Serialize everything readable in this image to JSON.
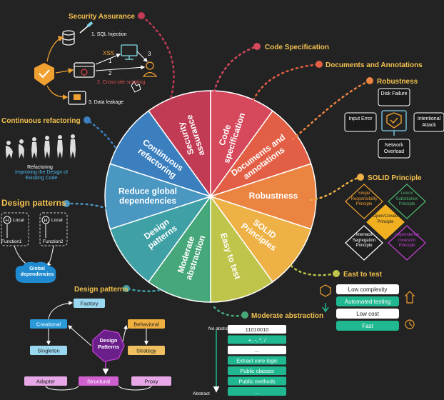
{
  "wheel": {
    "sectors": [
      {
        "label": "Security assurance",
        "color": "#c23b54"
      },
      {
        "label": "Code specification",
        "color": "#d6485c"
      },
      {
        "label": "Documents and annotations",
        "color": "#e25f45"
      },
      {
        "label": "Robustness",
        "color": "#ea8440"
      },
      {
        "label": "SOLID Principles",
        "color": "#eeb145"
      },
      {
        "label": "Easy to test",
        "color": "#bfc54a"
      },
      {
        "label": "Moderate abstraction",
        "color": "#46a77a"
      },
      {
        "label": "Design patterns",
        "color": "#3fa0a6"
      },
      {
        "label": "Reduce global dependencies",
        "color": "#4a97c2"
      },
      {
        "label": "Continuous refactoring",
        "color": "#3b7fbf"
      }
    ]
  },
  "headings": {
    "security": "Security Assurance",
    "code_spec": "Code Specification",
    "documents": "Documents and Annotations",
    "robustness": "Robustness",
    "solid": "SOLID Principle",
    "easy_test": "East to test",
    "moderate": "Moderate abstraction",
    "design_patterns_left": "Design patterns",
    "design_patterns_bottom": "Design patterns",
    "refactoring": "Continuous refactoring"
  },
  "security": {
    "sql": "1. SQL Injection",
    "xss": "XSS",
    "xss_caption": "2. Cross-site scripting",
    "leak": "3. Data leakage",
    "n1": "1",
    "n2": "2",
    "n3": "3"
  },
  "robustness": {
    "disk": "Disk Failure",
    "input": "Input Error",
    "intentional": "Intentional Attack",
    "network": "Network Overload"
  },
  "solid": {
    "single": "Single Responsibility Principle",
    "liskov": "Liskov Substitution Principle",
    "open_closed": "Open/Closed Principle",
    "interface": "Interface Segregation Principle",
    "dependency": "Dependency Inversion Principle"
  },
  "easy_test": {
    "items": [
      "Low complexity",
      "Automated testing",
      "Low cost",
      "Fast"
    ]
  },
  "abstraction": {
    "top": "No abstraction",
    "bottom": "Abstract",
    "rows": [
      "11010010",
      "+, -, *, /",
      "...",
      "Extract core logic",
      "Public classes",
      "Public methods",
      "..."
    ]
  },
  "refactoring": {
    "caption": "Refactoring",
    "subcaption": "Improving the Design of Exisiting Code"
  },
  "dependencies": {
    "h1": "H",
    "h2": "H",
    "local1": "Local",
    "local2": "Local",
    "f1": "Function1",
    "f2": "Function2",
    "global": "Global dependencies"
  },
  "patterns": {
    "center": "Design Patterns",
    "factory": "Factory",
    "creational": "Creational",
    "behavioral": "Behavioral",
    "singleton": "Singleton",
    "strategy": "Strategy",
    "adapter": "Adapter",
    "structural": "Structural",
    "proxy": "Proxy"
  }
}
